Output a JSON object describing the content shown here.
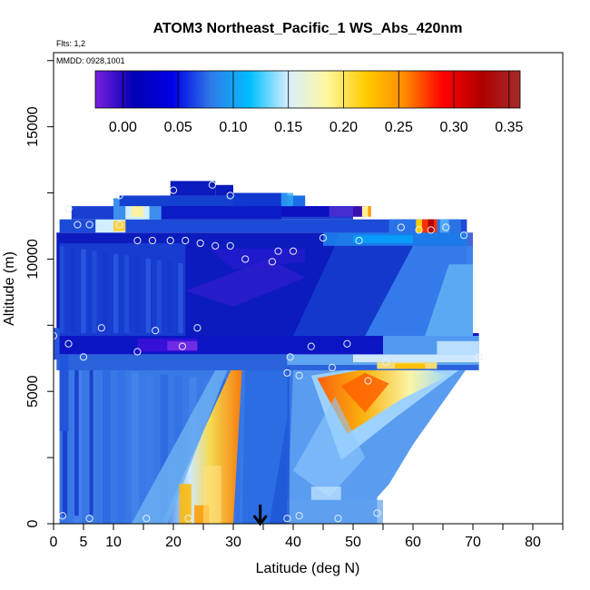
{
  "chart_data": {
    "type": "heatmap",
    "title": "ATOM3 Northeast_Pacific_1 WS_Abs_420nm",
    "flights_label": "Flts: 1,2",
    "dates_label": "MMDD: 0928,1001",
    "xlabel": "Latitude (deg N)",
    "ylabel": "Altitude (m)",
    "xlim": [
      0,
      85
    ],
    "ylim": [
      0,
      17800
    ],
    "x_ticks": [
      0,
      5,
      10,
      20,
      30,
      40,
      50,
      60,
      70,
      80
    ],
    "x_tick_labels": [
      "0",
      "5",
      "10",
      "20",
      "30",
      "40",
      "50",
      "60",
      "70",
      "80"
    ],
    "y_ticks": [
      0,
      5000,
      10000,
      15000
    ],
    "y_tick_labels": [
      "0",
      "5000",
      "10000",
      "15000"
    ],
    "colorbar": {
      "range": [
        -0.025,
        0.36
      ],
      "ticks": [
        0.0,
        0.05,
        0.1,
        0.15,
        0.2,
        0.25,
        0.3,
        0.35
      ],
      "tick_labels": [
        "0.00",
        "0.05",
        "0.10",
        "0.15",
        "0.20",
        "0.25",
        "0.30",
        "0.35"
      ],
      "colors": [
        "#7a1fe0",
        "#0000b4",
        "#0000e6",
        "#2f7be8",
        "#00bfff",
        "#d8efff",
        "#fff7a0",
        "#ffcc00",
        "#ff8c00",
        "#ff0000",
        "#b00000",
        "#a52a2a"
      ]
    },
    "arrow_latitude": 34.5,
    "sample_points": [
      {
        "lat": 2.5,
        "alt": 11900
      },
      {
        "lat": 4,
        "alt": 11300
      },
      {
        "lat": 6,
        "alt": 11300
      },
      {
        "lat": 9,
        "alt": 11300
      },
      {
        "lat": 11,
        "alt": 11300
      },
      {
        "lat": 11,
        "alt": 12400
      },
      {
        "lat": 14,
        "alt": 10700
      },
      {
        "lat": 16.5,
        "alt": 10700
      },
      {
        "lat": 19.5,
        "alt": 10700
      },
      {
        "lat": 20,
        "alt": 12600
      },
      {
        "lat": 22,
        "alt": 10700
      },
      {
        "lat": 24.5,
        "alt": 10600
      },
      {
        "lat": 26.5,
        "alt": 12800
      },
      {
        "lat": 27,
        "alt": 10500
      },
      {
        "lat": 29.5,
        "alt": 10500
      },
      {
        "lat": 29.5,
        "alt": 12400
      },
      {
        "lat": 32,
        "alt": 10000
      },
      {
        "lat": 36.5,
        "alt": 9900
      },
      {
        "lat": 37.5,
        "alt": 10300
      },
      {
        "lat": 40,
        "alt": 10300
      },
      {
        "lat": 45,
        "alt": 10800
      },
      {
        "lat": 51,
        "alt": 10700
      },
      {
        "lat": 58,
        "alt": 11200
      },
      {
        "lat": 61,
        "alt": 11100
      },
      {
        "lat": 63,
        "alt": 11100
      },
      {
        "lat": 65.5,
        "alt": 11200
      },
      {
        "lat": 68.5,
        "alt": 10900
      },
      {
        "lat": 0,
        "alt": 7100
      },
      {
        "lat": 2.5,
        "alt": 6800
      },
      {
        "lat": 5,
        "alt": 6300
      },
      {
        "lat": 8,
        "alt": 7400
      },
      {
        "lat": 14,
        "alt": 6500
      },
      {
        "lat": 17,
        "alt": 7300
      },
      {
        "lat": 21.5,
        "alt": 6700
      },
      {
        "lat": 24,
        "alt": 7400
      },
      {
        "lat": 39.5,
        "alt": 6300
      },
      {
        "lat": 39,
        "alt": 5700
      },
      {
        "lat": 41,
        "alt": 5600
      },
      {
        "lat": 43,
        "alt": 6700
      },
      {
        "lat": 46.5,
        "alt": 5900
      },
      {
        "lat": 49,
        "alt": 6800
      },
      {
        "lat": 52.5,
        "alt": 5400
      },
      {
        "lat": 55.5,
        "alt": 6100
      },
      {
        "lat": 71,
        "alt": 6300
      },
      {
        "lat": 1.5,
        "alt": 300
      },
      {
        "lat": 6,
        "alt": 200
      },
      {
        "lat": 15.5,
        "alt": 200
      },
      {
        "lat": 22.5,
        "alt": 200
      },
      {
        "lat": 39,
        "alt": 200
      },
      {
        "lat": 41,
        "alt": 300
      },
      {
        "lat": 47.5,
        "alt": 200
      },
      {
        "lat": 54,
        "alt": 400
      }
    ]
  }
}
